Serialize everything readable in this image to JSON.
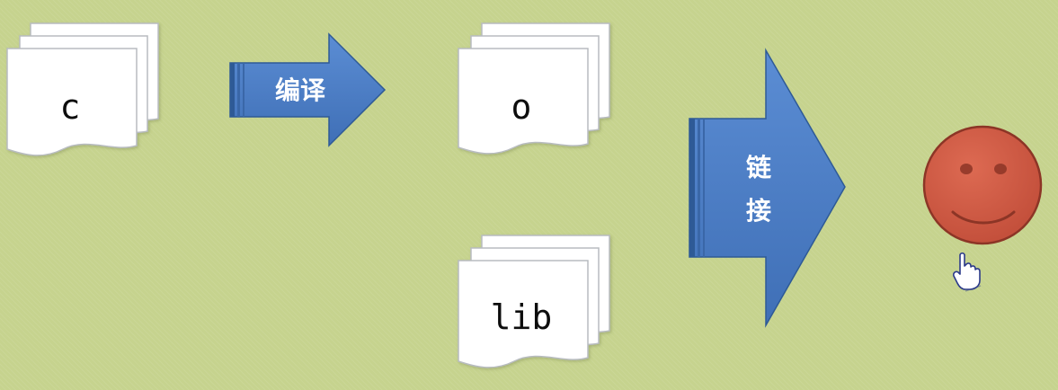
{
  "documents": {
    "c": {
      "label": "c"
    },
    "o": {
      "label": "o"
    },
    "lib": {
      "label": "lib"
    }
  },
  "arrows": {
    "compile": {
      "label": "编译"
    },
    "link": {
      "label_line1": "链",
      "label_line2": "接"
    }
  },
  "result": {
    "icon": "smiley-face-icon"
  },
  "cursor": {
    "icon": "hand-pointer-icon"
  },
  "colors": {
    "background": "#c6d38e",
    "arrow_fill": "#4a7cc4",
    "arrow_stroke": "#2e5a96",
    "smiley_fill": "#cc5a45",
    "smiley_stroke": "#8c3526",
    "page_fill": "#ffffff",
    "page_stroke": "#b8bcc0"
  }
}
